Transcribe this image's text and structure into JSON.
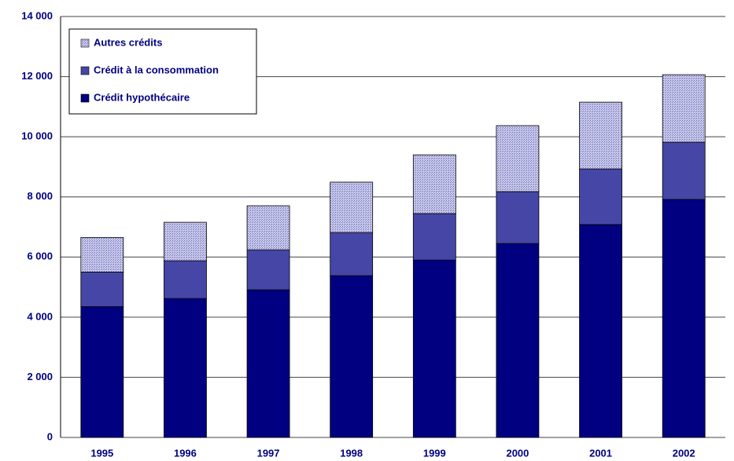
{
  "chart_data": {
    "type": "stacked_bar",
    "categories": [
      "1995",
      "1996",
      "1997",
      "1998",
      "1999",
      "2000",
      "2001",
      "2002"
    ],
    "series": [
      {
        "name": "Crédit hypothécaire",
        "color": "#000080",
        "values": [
          4350,
          4620,
          4910,
          5380,
          5900,
          6450,
          7080,
          7915
        ]
      },
      {
        "name": "Crédit à la consommation",
        "color": "#4646a6",
        "values": [
          1150,
          1255,
          1330,
          1435,
          1545,
          1725,
          1850,
          1905
        ]
      },
      {
        "name": "Autres crédits",
        "color": "#a3a3d6",
        "values": [
          1150,
          1280,
          1465,
          1675,
          1955,
          2195,
          2220,
          2245
        ]
      }
    ],
    "ylim": [
      0,
      14000
    ],
    "yticks": [
      0,
      {
        "value": 2000,
        "label": "2 000"
      },
      {
        "value": 4000,
        "label": "4 000"
      },
      {
        "value": 6000,
        "label": "6 000"
      },
      {
        "value": 8000,
        "label": "8 000"
      },
      {
        "value": 10000,
        "label": "10 000"
      },
      {
        "value": 12000,
        "label": "12 000"
      },
      {
        "value": 14000,
        "label": "14 000"
      }
    ],
    "grid": true,
    "legend": "upper left"
  }
}
